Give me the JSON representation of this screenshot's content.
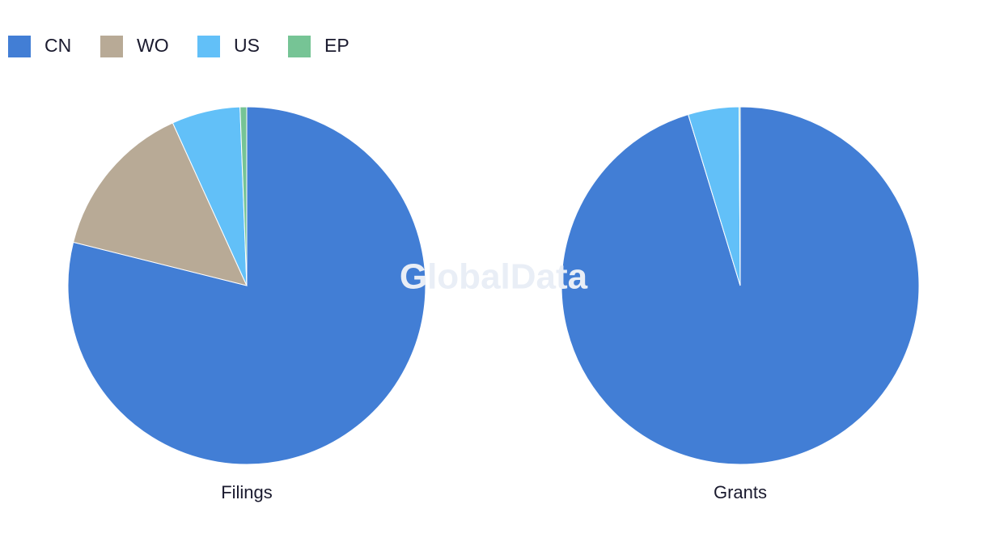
{
  "watermark": "GlobalData",
  "chart_data": [
    {
      "type": "pie",
      "title": "Filings",
      "categories": [
        "CN",
        "WO",
        "US",
        "EP"
      ],
      "colors": [
        "#427ed5",
        "#b8aa96",
        "#62c0f8",
        "#76c495"
      ],
      "values": [
        78.9,
        14.3,
        6.2,
        0.6
      ]
    },
    {
      "type": "pie",
      "title": "Grants",
      "categories": [
        "CN",
        "WO",
        "US",
        "EP"
      ],
      "colors": [
        "#427ed5",
        "#b8aa96",
        "#62c0f8",
        "#76c495"
      ],
      "values": [
        95.3,
        0,
        4.6,
        0.1
      ]
    }
  ]
}
